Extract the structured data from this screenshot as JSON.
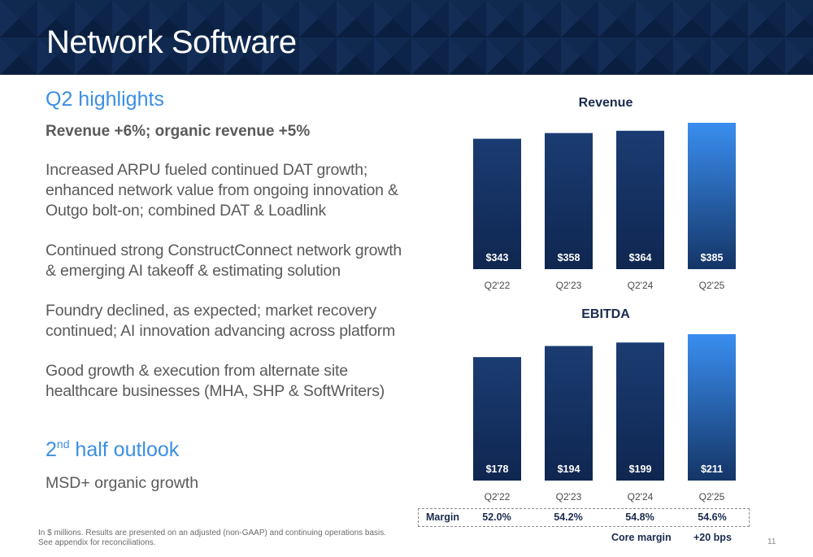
{
  "header": {
    "title": "Network Software"
  },
  "highlights": {
    "heading": "Q2 highlights",
    "headline": "Revenue +6%; organic revenue +5%",
    "bullets": [
      "Increased ARPU fueled continued DAT growth; enhanced network value from ongoing innovation & Outgo bolt-on; combined DAT & Loadlink",
      "Continued strong ConstructConnect network growth & emerging AI takeoff & estimating solution",
      "Foundry declined, as expected; market recovery continued; AI innovation advancing across platform",
      "Good growth & execution from alternate site healthcare businesses (MHA, SHP & SoftWriters)"
    ]
  },
  "outlook": {
    "heading_num": "2",
    "heading_sup": "nd",
    "heading_rest": " half outlook",
    "text": "MSD+ organic growth"
  },
  "chart_data": [
    {
      "type": "bar",
      "title": "Revenue",
      "categories": [
        "Q2'22",
        "Q2'23",
        "Q2'24",
        "Q2'25"
      ],
      "values": [
        343,
        358,
        364,
        385
      ],
      "labels": [
        "$343",
        "$358",
        "$364",
        "$385"
      ],
      "ylim": [
        0,
        385
      ],
      "grid": false,
      "colors": [
        "#1b3c72",
        "#1b3c72",
        "#1b3c72",
        "#3a8ef0"
      ]
    },
    {
      "type": "bar",
      "title": "EBITDA",
      "categories": [
        "Q2'22",
        "Q2'23",
        "Q2'24",
        "Q2'25"
      ],
      "values": [
        178,
        194,
        199,
        211
      ],
      "labels": [
        "$178",
        "$194",
        "$199",
        "$211"
      ],
      "ylim": [
        0,
        211
      ],
      "grid": false,
      "colors": [
        "#1b3c72",
        "#1b3c72",
        "#1b3c72",
        "#3a8ef0"
      ]
    }
  ],
  "margin": {
    "label": "Margin",
    "values": [
      "52.0%",
      "54.2%",
      "54.8%",
      "54.6%"
    ],
    "core_label": "Core margin",
    "core_value": "+20 bps"
  },
  "footnote": {
    "line1": "In $ millions. Results are presented on an adjusted (non-GAAP) and continuing operations basis.",
    "line2": "See appendix for reconciliations."
  },
  "page_number": "11"
}
